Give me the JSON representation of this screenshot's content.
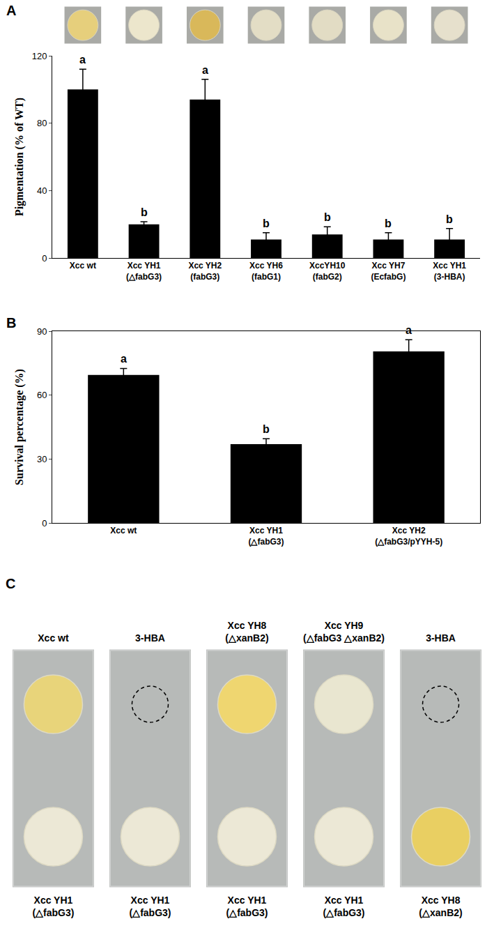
{
  "chart_data": [
    {
      "panel": "A",
      "type": "bar",
      "y_label": "Pigmentation (% of WT)",
      "categories": [
        "Xcc wt",
        "Xcc YH1 (△fabG3)",
        "Xcc YH2 (fabG3)",
        "Xcc YH6 (fabG1)",
        "XccYH10 (fabG2)",
        "Xcc YH7 (EcfabG)",
        "Xcc YH1 (3-HBA)"
      ],
      "values": [
        100,
        20,
        94,
        11,
        14,
        11,
        11
      ],
      "errors": [
        12,
        1.5,
        12,
        4,
        4.5,
        4,
        6.5
      ],
      "significance": [
        "a",
        "b",
        "a",
        "b",
        "b",
        "b",
        "b"
      ],
      "colony_colors": [
        "#e6cf7c",
        "#ece6cc",
        "#d9b85a",
        "#e3ddc5",
        "#e2dcc4",
        "#e8e2c8",
        "#e6e0cc"
      ],
      "color": "#000000",
      "ylim": [
        0,
        120
      ],
      "yticks": [
        0,
        40,
        80,
        120
      ],
      "grid": false
    },
    {
      "panel": "B",
      "type": "bar",
      "y_label": "Survival percentage (%)",
      "categories": [
        "Xcc wt",
        "Xcc YH1 (△fabG3)",
        "Xcc YH2 (△fabG3/pYYH-5)"
      ],
      "values": [
        69.5,
        37,
        80.5
      ],
      "errors": [
        3,
        2.5,
        5.5
      ],
      "significance": [
        "a",
        "b",
        "a"
      ],
      "color": "#000000",
      "ylim": [
        0,
        90
      ],
      "yticks": [
        0,
        30,
        60,
        90
      ],
      "grid": false
    }
  ],
  "plates": {
    "panel": "C",
    "columns": [
      {
        "top": "Xcc wt",
        "top_color": "#e8d47a",
        "bottom": "Xcc YH1 (△fabG3)",
        "bottom_color": "#ece8d6"
      },
      {
        "top": "3-HBA",
        "top_color": null,
        "bottom": "Xcc YH1 (△fabG3)",
        "bottom_color": "#ece8d6"
      },
      {
        "top": "Xcc YH8 (△xanB2)",
        "top_color": "#efd670",
        "bottom": "Xcc YH1 (△fabG3)",
        "bottom_color": "#ece8d6"
      },
      {
        "top": "Xcc YH9 (△fabG3 △xanB2)",
        "top_color": "#e9e6d0",
        "bottom": "Xcc YH1 (△fabG3)",
        "bottom_color": "#ece8d6"
      },
      {
        "top": "3-HBA",
        "top_color": null,
        "bottom": "Xcc YH8 (△xanB2)",
        "bottom_color": "#e9cf62"
      }
    ]
  }
}
